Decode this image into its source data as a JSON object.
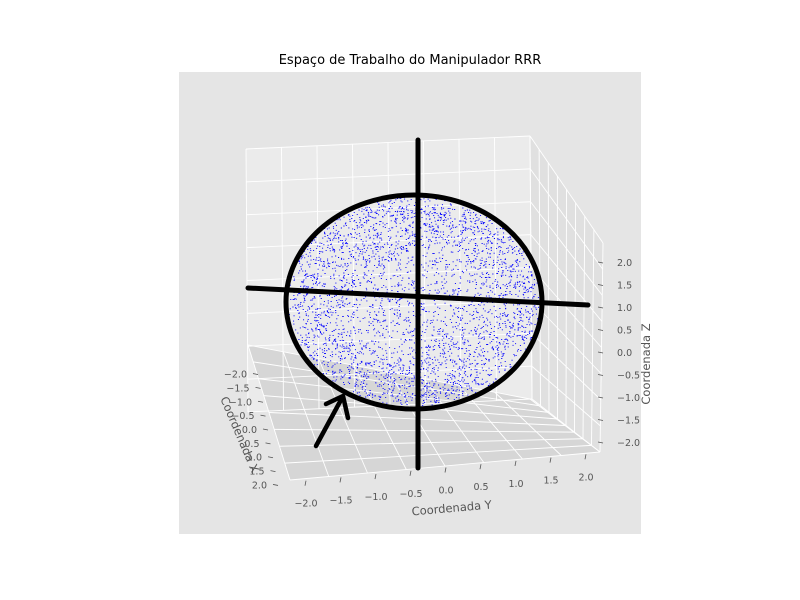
{
  "chart_data": {
    "type": "scatter",
    "title": "Espaço de Trabalho do Manipulador RRR",
    "xlabel": "Coordenada X",
    "ylabel": "Coordenada Y",
    "zlabel": "Coordenada Z",
    "x_ticks": [
      "−2.0",
      "−1.5",
      "−1.0",
      "−0.5",
      "0.0",
      "0.5",
      "1.0",
      "1.5",
      "2.0"
    ],
    "y_ticks": [
      "−2.0",
      "−1.5",
      "−1.0",
      "−0.5",
      "0.0",
      "0.5",
      "1.0",
      "1.5",
      "2.0"
    ],
    "z_ticks": [
      "−2.0",
      "−1.5",
      "−1.0",
      "−0.5",
      "0.0",
      "0.5",
      "1.0",
      "1.5",
      "2.0"
    ],
    "xlim": [
      -2.2,
      2.2
    ],
    "ylim": [
      -2.2,
      2.2
    ],
    "zlim": [
      -2.2,
      2.2
    ],
    "series": [
      {
        "marker": "point",
        "color": "#0000ff",
        "shape": "sphere",
        "center": [
          0,
          0,
          0
        ],
        "radius": 2.0,
        "point_count": 3500
      }
    ],
    "overlay_markings": {
      "color": "#000000",
      "circle": true,
      "cross_lines": true,
      "arrow": true
    },
    "grid": true,
    "pane_color": "#e5e5e5",
    "view": "3d-perspective"
  }
}
